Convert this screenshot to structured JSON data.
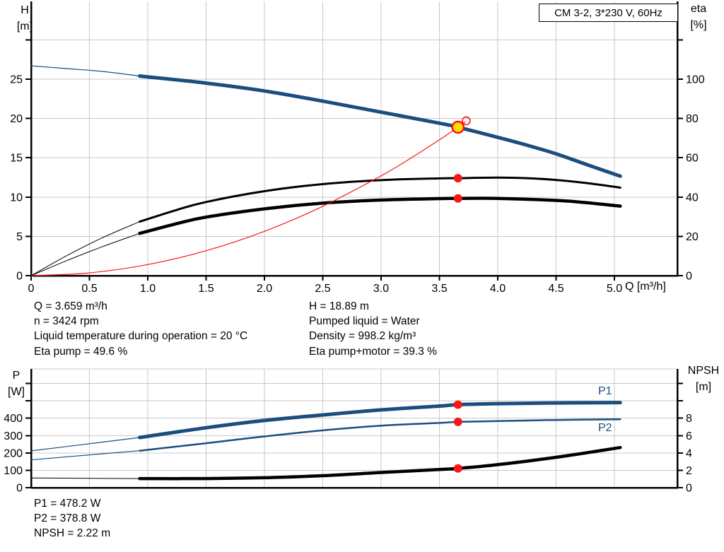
{
  "colors": {
    "blue": "#1b4e7d",
    "red": "#fb1515",
    "black": "#000000",
    "yellow": "#ffdf00",
    "grid": "#c8c8c8",
    "text": "#000000"
  },
  "info": {
    "left": [
      "Q = 3.659 m³/h",
      "n = 3424 rpm",
      "Liquid temperature during operation = 20 °C",
      "Eta pump = 49.6 %"
    ],
    "right": [
      "H = 18.89 m",
      "Pumped liquid = Water",
      "Density = 998.2 kg/m³",
      "Eta pump+motor = 39.3 %"
    ]
  },
  "results": [
    "P1 = 478.2 W",
    "P2 = 378.8 W",
    "NPSH = 2.22 m"
  ],
  "chart_data": [
    {
      "id": "head-efficiency",
      "type": "line",
      "title": "CM 3-2, 3*230 V, 60Hz",
      "x_axis": {
        "title": "Q [m³/h]",
        "min": 0,
        "max": 5.54,
        "ticks": [
          {
            "v": 0,
            "label": "0"
          },
          {
            "v": 0.5,
            "label": "0.5"
          },
          {
            "v": 1,
            "label": "1.0"
          },
          {
            "v": 1.5,
            "label": "1.5"
          },
          {
            "v": 2,
            "label": "2.0"
          },
          {
            "v": 2.5,
            "label": "2.5"
          },
          {
            "v": 3,
            "label": "3.0"
          },
          {
            "v": 3.5,
            "label": "3.5"
          },
          {
            "v": 4,
            "label": "4.0"
          },
          {
            "v": 4.5,
            "label": "4.5"
          },
          {
            "v": 5,
            "label": "5.0"
          }
        ],
        "grid_values": [
          0.5,
          1,
          1.5,
          2,
          2.5,
          3,
          3.5,
          4,
          4.5,
          5
        ]
      },
      "y_left": {
        "title": "H",
        "unit": "[m]",
        "min": 0,
        "max": 34.8,
        "ticks": [
          {
            "v": 0,
            "label": "0"
          },
          {
            "v": 5,
            "label": "5"
          },
          {
            "v": 10,
            "label": "10"
          },
          {
            "v": 15,
            "label": "15"
          },
          {
            "v": 20,
            "label": "20"
          },
          {
            "v": 25,
            "label": "25"
          },
          {
            "v": 30,
            "label": ""
          }
        ],
        "grid_values": [
          5,
          10,
          15,
          20,
          25,
          30
        ]
      },
      "y_right": {
        "title": "eta",
        "unit": "[%]",
        "min": 0,
        "max": 139,
        "ticks": [
          {
            "v": 0,
            "label": "0"
          },
          {
            "v": 20,
            "label": "20"
          },
          {
            "v": 40,
            "label": "40"
          },
          {
            "v": 60,
            "label": "60"
          },
          {
            "v": 80,
            "label": "80"
          },
          {
            "v": 100,
            "label": "100"
          },
          {
            "v": 120,
            "label": ""
          }
        ]
      },
      "series": [
        {
          "name": "h-q-extrapolated",
          "axis": "left",
          "color": "blue",
          "width": 1.2,
          "points": [
            [
              0,
              26.7
            ],
            [
              0.3,
              26.35
            ],
            [
              0.6,
              26.0
            ],
            [
              0.93,
              25.4
            ]
          ]
        },
        {
          "name": "h-q-curve",
          "axis": "left",
          "color": "blue",
          "width": 5,
          "points": [
            [
              0.93,
              25.4
            ],
            [
              1.5,
              24.5
            ],
            [
              2,
              23.5
            ],
            [
              2.5,
              22.2
            ],
            [
              3,
              20.8
            ],
            [
              3.5,
              19.4
            ],
            [
              3.659,
              18.89
            ],
            [
              4,
              17.6
            ],
            [
              4.25,
              16.6
            ],
            [
              4.5,
              15.5
            ],
            [
              4.75,
              14.2
            ],
            [
              5.05,
              12.65
            ]
          ]
        },
        {
          "name": "eta-pump-extrapolated",
          "axis": "right",
          "color": "black",
          "width": 1,
          "points": [
            [
              0,
              0
            ],
            [
              0.3,
              10
            ],
            [
              0.6,
              19
            ],
            [
              0.93,
              27.5
            ]
          ]
        },
        {
          "name": "eta-pump-curve",
          "axis": "right",
          "color": "black",
          "width": 3,
          "points": [
            [
              0.93,
              27.5
            ],
            [
              1.25,
              33.5
            ],
            [
              1.5,
              37.5
            ],
            [
              2,
              43
            ],
            [
              2.5,
              46.6
            ],
            [
              3,
              48.6
            ],
            [
              3.5,
              49.5
            ],
            [
              3.659,
              49.6
            ],
            [
              4,
              49.9
            ],
            [
              4.25,
              49.6
            ],
            [
              4.5,
              48.7
            ],
            [
              4.75,
              47.2
            ],
            [
              5.05,
              44.8
            ]
          ]
        },
        {
          "name": "eta-pump-motor-extrapolated",
          "axis": "right",
          "color": "black",
          "width": 1,
          "points": [
            [
              0,
              0
            ],
            [
              0.3,
              7.5
            ],
            [
              0.6,
              14.5
            ],
            [
              0.93,
              21.5
            ]
          ]
        },
        {
          "name": "eta-pump-motor-curve",
          "axis": "right",
          "color": "black",
          "width": 4.5,
          "points": [
            [
              0.93,
              21.5
            ],
            [
              1.25,
              26.5
            ],
            [
              1.5,
              29.8
            ],
            [
              2,
              34
            ],
            [
              2.5,
              36.9
            ],
            [
              3,
              38.5
            ],
            [
              3.5,
              39.2
            ],
            [
              3.659,
              39.3
            ],
            [
              4,
              39.3
            ],
            [
              4.5,
              38.3
            ],
            [
              4.75,
              37.2
            ],
            [
              5.05,
              35.4
            ]
          ]
        },
        {
          "name": "system-curve",
          "axis": "left",
          "color": "red",
          "width": 1.2,
          "points": [
            [
              0,
              0
            ],
            [
              0.5,
              0.35
            ],
            [
              1,
              1.41
            ],
            [
              1.5,
              3.17
            ],
            [
              2,
              5.64
            ],
            [
              2.5,
              8.82
            ],
            [
              3,
              12.7
            ],
            [
              3.25,
              14.9
            ],
            [
              3.5,
              17.28
            ],
            [
              3.659,
              18.89
            ],
            [
              3.72,
              19.55
            ]
          ]
        }
      ],
      "markers": [
        {
          "name": "eta-pump-point",
          "q": 3.659,
          "value": 49.6,
          "axis": "right",
          "style": "red-dot"
        },
        {
          "name": "eta-pump-motor-point",
          "q": 3.659,
          "value": 39.3,
          "axis": "right",
          "style": "red-dot"
        },
        {
          "name": "duty-point-preview",
          "q": 3.73,
          "value": 19.7,
          "axis": "left",
          "style": "open-circle"
        },
        {
          "name": "duty-point",
          "q": 3.659,
          "value": 18.89,
          "axis": "left",
          "style": "yellow-dot"
        }
      ]
    },
    {
      "id": "power-npsh",
      "type": "line",
      "title": "",
      "x_axis": {
        "title": "",
        "min": 0,
        "max": 5.54,
        "ticks": [],
        "grid_values": [
          0.5,
          1,
          1.5,
          2,
          2.5,
          3,
          3.5,
          4,
          4.5,
          5
        ]
      },
      "y_left": {
        "title": "P",
        "unit": "[W]",
        "min": 0,
        "max": 684,
        "ticks": [
          {
            "v": 0,
            "label": "0"
          },
          {
            "v": 100,
            "label": "100"
          },
          {
            "v": 200,
            "label": "200"
          },
          {
            "v": 300,
            "label": "300"
          },
          {
            "v": 400,
            "label": "400"
          },
          {
            "v": 500,
            "label": ""
          },
          {
            "v": 600,
            "label": ""
          }
        ],
        "grid_values": [
          100,
          200,
          300,
          400,
          500,
          600
        ]
      },
      "y_right": {
        "title": "NPSH",
        "unit": "[m]",
        "min": 0,
        "max": 13.7,
        "ticks": [
          {
            "v": 0,
            "label": "0"
          },
          {
            "v": 2,
            "label": "2"
          },
          {
            "v": 4,
            "label": "4"
          },
          {
            "v": 6,
            "label": "6"
          },
          {
            "v": 8,
            "label": "8"
          },
          {
            "v": 10,
            "label": ""
          },
          {
            "v": 12,
            "label": ""
          }
        ]
      },
      "curve_labels": [
        {
          "label": "P1"
        },
        {
          "label": "P2"
        }
      ],
      "series": [
        {
          "name": "p1-extrapolated",
          "axis": "left",
          "color": "blue",
          "width": 1.2,
          "points": [
            [
              0,
              212
            ],
            [
              0.5,
              253
            ],
            [
              0.93,
              289
            ]
          ]
        },
        {
          "name": "p1-curve",
          "axis": "left",
          "color": "blue",
          "width": 5,
          "points": [
            [
              0.93,
              289
            ],
            [
              1.5,
              345
            ],
            [
              2,
              387
            ],
            [
              2.5,
              419
            ],
            [
              3,
              448
            ],
            [
              3.5,
              470
            ],
            [
              3.659,
              478.2
            ],
            [
              4,
              484
            ],
            [
              4.5,
              488
            ],
            [
              5.05,
              490
            ]
          ]
        },
        {
          "name": "p2-extrapolated",
          "axis": "left",
          "color": "blue",
          "width": 1.2,
          "points": [
            [
              0,
              160
            ],
            [
              0.5,
              189
            ],
            [
              0.93,
              213
            ]
          ]
        },
        {
          "name": "p2-curve",
          "axis": "left",
          "color": "blue",
          "width": 2.5,
          "points": [
            [
              0.93,
              213
            ],
            [
              1.5,
              256
            ],
            [
              2,
              295
            ],
            [
              2.5,
              330
            ],
            [
              3,
              357
            ],
            [
              3.5,
              373
            ],
            [
              3.659,
              378.8
            ],
            [
              4,
              384
            ],
            [
              4.5,
              390
            ],
            [
              5.05,
              394
            ]
          ]
        },
        {
          "name": "npsh-extrapolated",
          "axis": "right",
          "color": "black",
          "width": 1,
          "points": [
            [
              0,
              1.12
            ],
            [
              0.5,
              1.08
            ],
            [
              0.93,
              1.05
            ]
          ]
        },
        {
          "name": "npsh-curve",
          "axis": "right",
          "color": "black",
          "width": 4.5,
          "points": [
            [
              0.93,
              1.05
            ],
            [
              1.5,
              1.05
            ],
            [
              2,
              1.15
            ],
            [
              2.5,
              1.38
            ],
            [
              3,
              1.75
            ],
            [
              3.5,
              2.1
            ],
            [
              3.659,
              2.22
            ],
            [
              4,
              2.65
            ],
            [
              4.5,
              3.5
            ],
            [
              5.05,
              4.62
            ]
          ]
        }
      ],
      "markers": [
        {
          "name": "p1-point",
          "q": 3.659,
          "value": 478.2,
          "axis": "left",
          "style": "red-dot"
        },
        {
          "name": "p2-point",
          "q": 3.659,
          "value": 378.8,
          "axis": "left",
          "style": "red-dot"
        },
        {
          "name": "npsh-point",
          "q": 3.659,
          "value": 2.22,
          "axis": "right",
          "style": "red-dot"
        }
      ]
    }
  ]
}
